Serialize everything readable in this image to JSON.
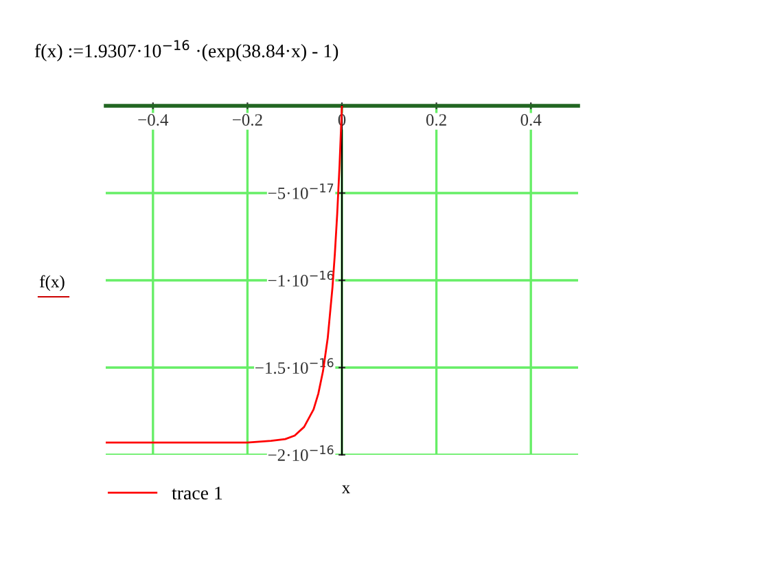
{
  "chart_data": {
    "type": "line",
    "title": "f(x) :=1.9307·10$^{−16}$ ·(exp(38.84·x) - 1)",
    "xlabel": "x",
    "ylabel": "f(x)",
    "x": [
      -0.5,
      -0.3,
      -0.2,
      -0.15,
      -0.12,
      -0.1,
      -0.08,
      -0.06,
      -0.05,
      -0.04,
      -0.03,
      -0.02,
      -0.015,
      -0.01,
      -0.005,
      0
    ],
    "series": [
      {
        "name": "trace 1",
        "color": "#ff0000",
        "values": [
          -1.93e-16,
          -1.93e-16,
          -1.93e-16,
          -1.92e-16,
          -1.91e-16,
          -1.89e-16,
          -1.84e-16,
          -1.74e-16,
          -1.65e-16,
          -1.52e-16,
          -1.33e-16,
          -1.04e-16,
          -8.5e-17,
          -6.2e-17,
          -3.4e-17,
          0
        ]
      }
    ],
    "xlim": [
      -0.5,
      0.5
    ],
    "ylim": [
      -2e-16,
      0
    ],
    "xticks": [
      {
        "value": -0.4,
        "label": "−0.4"
      },
      {
        "value": -0.2,
        "label": "−0.2"
      },
      0,
      0.2,
      0.4
    ],
    "yticks": [
      {
        "value": -5e-17,
        "label": "−5·10$^{−17}$"
      },
      {
        "value": -1e-16,
        "label": "−1·10$^{−16}$"
      },
      {
        "value": -1.5e-16,
        "label": "−1.5·10$^{−16}$"
      },
      {
        "value": -2e-16,
        "label": "−2·10$^{−16}$"
      }
    ],
    "grid": true,
    "legend": "bottom left",
    "marker": "none",
    "line_style": "solid"
  }
}
